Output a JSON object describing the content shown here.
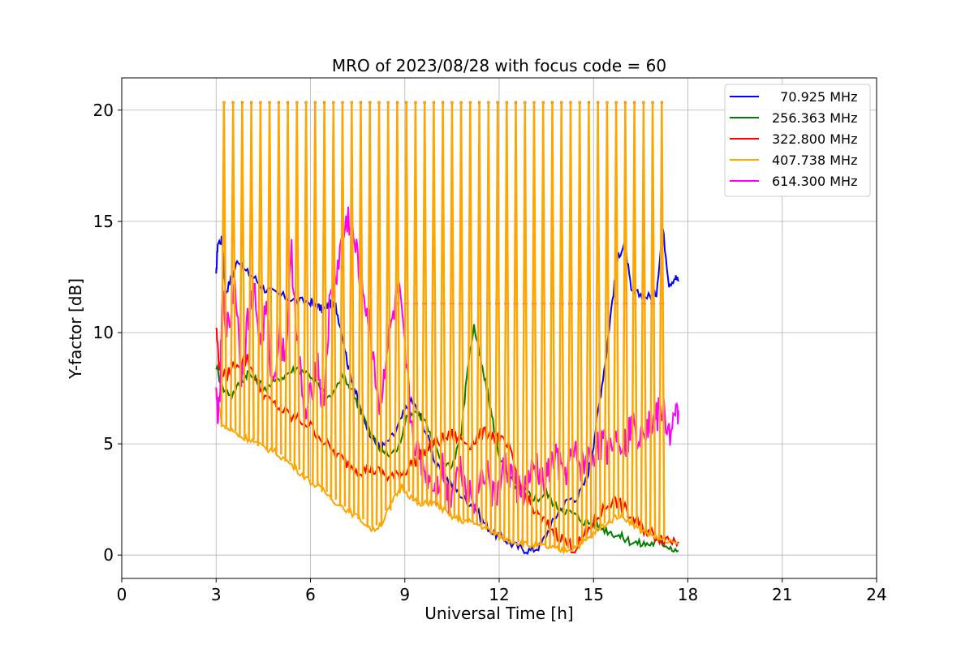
{
  "chart_data": {
    "type": "line",
    "title": "MRO of 2023/08/28 with focus code = 60",
    "xlabel": "Universal Time [h]",
    "ylabel": "Y-factor [dB]",
    "xlim": [
      0,
      24
    ],
    "ylim": [
      -1.05,
      21.45
    ],
    "xticks": [
      0,
      3,
      6,
      9,
      12,
      15,
      18,
      21,
      24
    ],
    "yticks": [
      0,
      5,
      10,
      15,
      20
    ],
    "grid": true,
    "legend_position": "top-right",
    "series": [
      {
        "name": "  70.925 MHz",
        "color": "#0000ff",
        "x": [
          3.0,
          3.05,
          3.2,
          3.3,
          3.5,
          3.7,
          3.9,
          4.2,
          4.5,
          4.8,
          5.2,
          5.6,
          6.0,
          6.2,
          6.4,
          6.6,
          6.8,
          7.0,
          7.2,
          7.4,
          7.6,
          7.8,
          8.0,
          8.2,
          8.4,
          8.7,
          9.0,
          9.2,
          9.5,
          9.8,
          10.0,
          10.3,
          10.6,
          10.9,
          11.2,
          11.5,
          11.8,
          12.1,
          12.4,
          12.7,
          13.0,
          13.3,
          13.6,
          13.9,
          14.2,
          14.5,
          14.8,
          15.0,
          15.2,
          15.4,
          15.6,
          15.8,
          16.0,
          16.2,
          16.5,
          16.8,
          17.0,
          17.2,
          17.4,
          17.6,
          17.7
        ],
        "y": [
          12.5,
          14.0,
          14.2,
          11.8,
          12.5,
          13.3,
          12.8,
          12.5,
          12.0,
          11.8,
          11.6,
          11.4,
          11.4,
          11.2,
          11.0,
          11.3,
          11.2,
          10.0,
          8.5,
          7.5,
          6.5,
          5.8,
          5.2,
          4.8,
          5.0,
          5.5,
          6.5,
          7.0,
          6.2,
          5.0,
          4.0,
          3.5,
          3.0,
          2.5,
          2.2,
          1.5,
          1.0,
          0.8,
          0.5,
          0.3,
          0.2,
          0.4,
          1.2,
          2.0,
          2.5,
          2.6,
          3.5,
          5.0,
          7.0,
          9.0,
          11.5,
          13.5,
          14.0,
          11.8,
          11.7,
          11.6,
          11.8,
          14.7,
          12.2,
          12.5,
          12.3
        ]
      },
      {
        "name": "256.363 MHz",
        "color": "#008000",
        "x": [
          3.0,
          3.2,
          3.5,
          3.8,
          4.0,
          4.3,
          4.6,
          5.0,
          5.3,
          5.6,
          6.0,
          6.3,
          6.6,
          7.0,
          7.3,
          7.6,
          7.9,
          8.2,
          8.5,
          8.8,
          9.0,
          9.3,
          9.6,
          9.9,
          10.2,
          10.5,
          10.8,
          11.0,
          11.2,
          11.4,
          11.6,
          11.8,
          12.0,
          12.3,
          12.6,
          12.9,
          13.2,
          13.5,
          13.8,
          14.1,
          14.4,
          14.7,
          15.0,
          15.3,
          15.6,
          15.9,
          16.2,
          16.5,
          16.8,
          17.1,
          17.4,
          17.7
        ],
        "y": [
          8.5,
          7.5,
          7.2,
          7.8,
          8.2,
          7.8,
          7.5,
          7.9,
          8.2,
          8.4,
          8.1,
          7.5,
          7.0,
          8.0,
          7.5,
          6.5,
          5.5,
          4.8,
          4.5,
          4.8,
          6.0,
          6.5,
          6.2,
          5.0,
          4.2,
          4.0,
          5.5,
          8.5,
          10.3,
          8.8,
          7.5,
          6.0,
          4.5,
          3.5,
          3.0,
          2.8,
          2.5,
          2.8,
          2.2,
          2.0,
          1.8,
          1.5,
          1.4,
          1.2,
          1.0,
          0.8,
          0.6,
          0.5,
          0.5,
          0.6,
          0.4,
          0.2
        ]
      },
      {
        "name": "322.800 MHz",
        "color": "#ff0000",
        "x": [
          3.0,
          3.1,
          3.3,
          3.6,
          4.0,
          4.3,
          4.6,
          5.0,
          5.4,
          5.8,
          6.2,
          6.6,
          7.0,
          7.3,
          7.6,
          7.9,
          8.2,
          8.5,
          8.8,
          9.0,
          9.3,
          9.6,
          9.9,
          10.2,
          10.5,
          10.8,
          11.1,
          11.4,
          11.7,
          12.0,
          12.3,
          12.6,
          12.9,
          13.2,
          13.5,
          13.8,
          14.1,
          14.4,
          14.7,
          15.0,
          15.3,
          15.6,
          15.9,
          16.2,
          16.5,
          16.8,
          17.1,
          17.4,
          17.7
        ],
        "y": [
          10.3,
          8.5,
          8.0,
          8.6,
          8.8,
          7.8,
          7.0,
          6.6,
          6.2,
          6.0,
          5.5,
          4.8,
          4.3,
          4.0,
          3.8,
          3.9,
          3.7,
          3.5,
          3.6,
          3.8,
          4.2,
          4.6,
          5.0,
          5.2,
          5.4,
          5.2,
          5.0,
          5.4,
          5.5,
          5.2,
          4.8,
          3.5,
          2.5,
          1.8,
          1.4,
          1.0,
          0.6,
          0.3,
          0.8,
          1.5,
          2.0,
          2.5,
          2.2,
          1.7,
          1.3,
          1.0,
          0.8,
          0.7,
          0.6
        ]
      },
      {
        "name": "407.738 MHz",
        "color": "#ffa500",
        "x": [
          3.0,
          3.2,
          3.5,
          3.8,
          4.1,
          4.4,
          4.8,
          5.2,
          5.6,
          6.0,
          6.4,
          6.8,
          7.2,
          7.6,
          8.0,
          8.3,
          8.6,
          8.9,
          9.2,
          9.5,
          9.8,
          10.1,
          10.4,
          10.7,
          11.0,
          11.3,
          11.6,
          11.9,
          12.2,
          12.5,
          12.8,
          13.1,
          13.4,
          13.7,
          14.0,
          14.3,
          14.6,
          14.9,
          15.2,
          15.5,
          15.8,
          16.1,
          16.4,
          16.7,
          17.0,
          17.3,
          17.7
        ],
        "y": [
          7.5,
          5.8,
          5.6,
          5.3,
          5.2,
          4.9,
          4.7,
          4.3,
          3.8,
          3.3,
          2.9,
          2.4,
          2.0,
          1.6,
          1.1,
          1.5,
          2.4,
          3.1,
          2.6,
          2.2,
          2.4,
          2.2,
          1.8,
          1.6,
          1.5,
          1.4,
          1.2,
          0.9,
          0.7,
          0.6,
          0.5,
          0.4,
          0.4,
          0.3,
          0.2,
          0.3,
          0.5,
          0.8,
          1.2,
          1.5,
          1.8,
          1.6,
          1.2,
          1.0,
          0.8,
          0.6,
          0.5
        ]
      },
      {
        "name": "614.300 MHz",
        "color": "#ff00ff",
        "x": [
          3.0,
          3.1,
          3.2,
          3.4,
          3.6,
          3.8,
          4.0,
          4.2,
          4.4,
          4.6,
          4.8,
          5.0,
          5.2,
          5.4,
          5.6,
          5.8,
          6.0,
          6.2,
          6.4,
          6.6,
          6.8,
          7.0,
          7.2,
          7.4,
          7.6,
          7.8,
          8.0,
          8.2,
          8.4,
          8.6,
          8.8,
          9.0,
          9.2,
          9.4,
          9.6,
          9.8,
          10.0,
          10.2,
          10.4,
          10.6,
          10.8,
          11.0,
          11.2,
          11.4,
          11.6,
          11.8,
          12.0,
          12.2,
          12.4,
          12.6,
          12.8,
          13.0,
          13.2,
          13.4,
          13.6,
          13.8,
          14.0,
          14.2,
          14.4,
          14.6,
          14.8,
          15.0,
          15.2,
          15.4,
          15.6,
          15.8,
          16.0,
          16.2,
          16.4,
          16.6,
          16.8,
          17.0,
          17.2,
          17.4,
          17.6,
          17.7
        ],
        "y": [
          7.0,
          6.2,
          11.5,
          10.0,
          12.5,
          8.0,
          10.5,
          12.0,
          9.5,
          11.0,
          7.5,
          10.0,
          9.0,
          13.5,
          9.5,
          6.0,
          7.0,
          9.0,
          6.5,
          11.0,
          12.5,
          14.0,
          15.2,
          14.0,
          12.5,
          11.0,
          9.0,
          6.5,
          9.0,
          10.5,
          12.0,
          9.0,
          6.0,
          4.5,
          4.0,
          3.5,
          3.0,
          4.0,
          2.5,
          3.5,
          4.0,
          3.0,
          2.5,
          3.5,
          4.0,
          2.5,
          3.0,
          4.0,
          3.5,
          3.0,
          2.8,
          3.5,
          4.0,
          3.0,
          3.8,
          4.5,
          3.5,
          4.0,
          4.5,
          4.0,
          4.2,
          4.5,
          5.0,
          4.8,
          5.2,
          5.5,
          5.0,
          5.8,
          5.5,
          6.0,
          5.8,
          6.2,
          6.5,
          5.5,
          6.0,
          6.5
        ]
      }
    ],
    "orange_spikes": {
      "start": 3.25,
      "end": 17.45,
      "step": 0.29,
      "peak": 20.4,
      "plateau": 11.3,
      "plateau_start": 8.7
    }
  }
}
